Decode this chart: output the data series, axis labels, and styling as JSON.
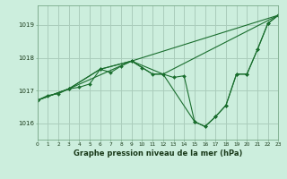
{
  "background_color": "#cceedd",
  "grid_color": "#aaccbb",
  "line_color": "#1a6e2e",
  "title": "Graphe pression niveau de la mer (hPa)",
  "xlim": [
    0,
    23
  ],
  "ylim": [
    1015.5,
    1019.6
  ],
  "yticks": [
    1016,
    1017,
    1018,
    1019
  ],
  "xticks": [
    0,
    1,
    2,
    3,
    4,
    5,
    6,
    7,
    8,
    9,
    10,
    11,
    12,
    13,
    14,
    15,
    16,
    17,
    18,
    19,
    20,
    21,
    22,
    23
  ],
  "series": [
    {
      "x": [
        0,
        1,
        2,
        3,
        4,
        5,
        6,
        7,
        8,
        9,
        10,
        11,
        12,
        13,
        14,
        15,
        16,
        17,
        18,
        19,
        20,
        21,
        22,
        23
      ],
      "y": [
        1016.7,
        1016.85,
        1016.9,
        1017.05,
        1017.1,
        1017.2,
        1017.65,
        1017.55,
        1017.75,
        1017.9,
        1017.7,
        1017.5,
        1017.5,
        1017.4,
        1017.45,
        1016.05,
        1015.9,
        1016.2,
        1016.55,
        1017.5,
        1017.5,
        1018.25,
        1019.05,
        1019.3
      ],
      "markers": true
    },
    {
      "x": [
        0,
        3,
        9,
        23
      ],
      "y": [
        1016.7,
        1017.05,
        1017.9,
        1019.3
      ],
      "markers": false
    },
    {
      "x": [
        0,
        3,
        6,
        9,
        10,
        11,
        12,
        23
      ],
      "y": [
        1016.7,
        1017.05,
        1017.65,
        1017.9,
        1017.7,
        1017.5,
        1017.5,
        1019.3
      ],
      "markers": false
    },
    {
      "x": [
        0,
        3,
        6,
        9,
        12,
        15,
        16,
        17,
        18,
        19,
        20,
        21,
        22,
        23
      ],
      "y": [
        1016.7,
        1017.05,
        1017.65,
        1017.9,
        1017.5,
        1016.05,
        1015.9,
        1016.2,
        1016.55,
        1017.5,
        1017.5,
        1018.25,
        1019.05,
        1019.3
      ],
      "markers": true
    }
  ]
}
